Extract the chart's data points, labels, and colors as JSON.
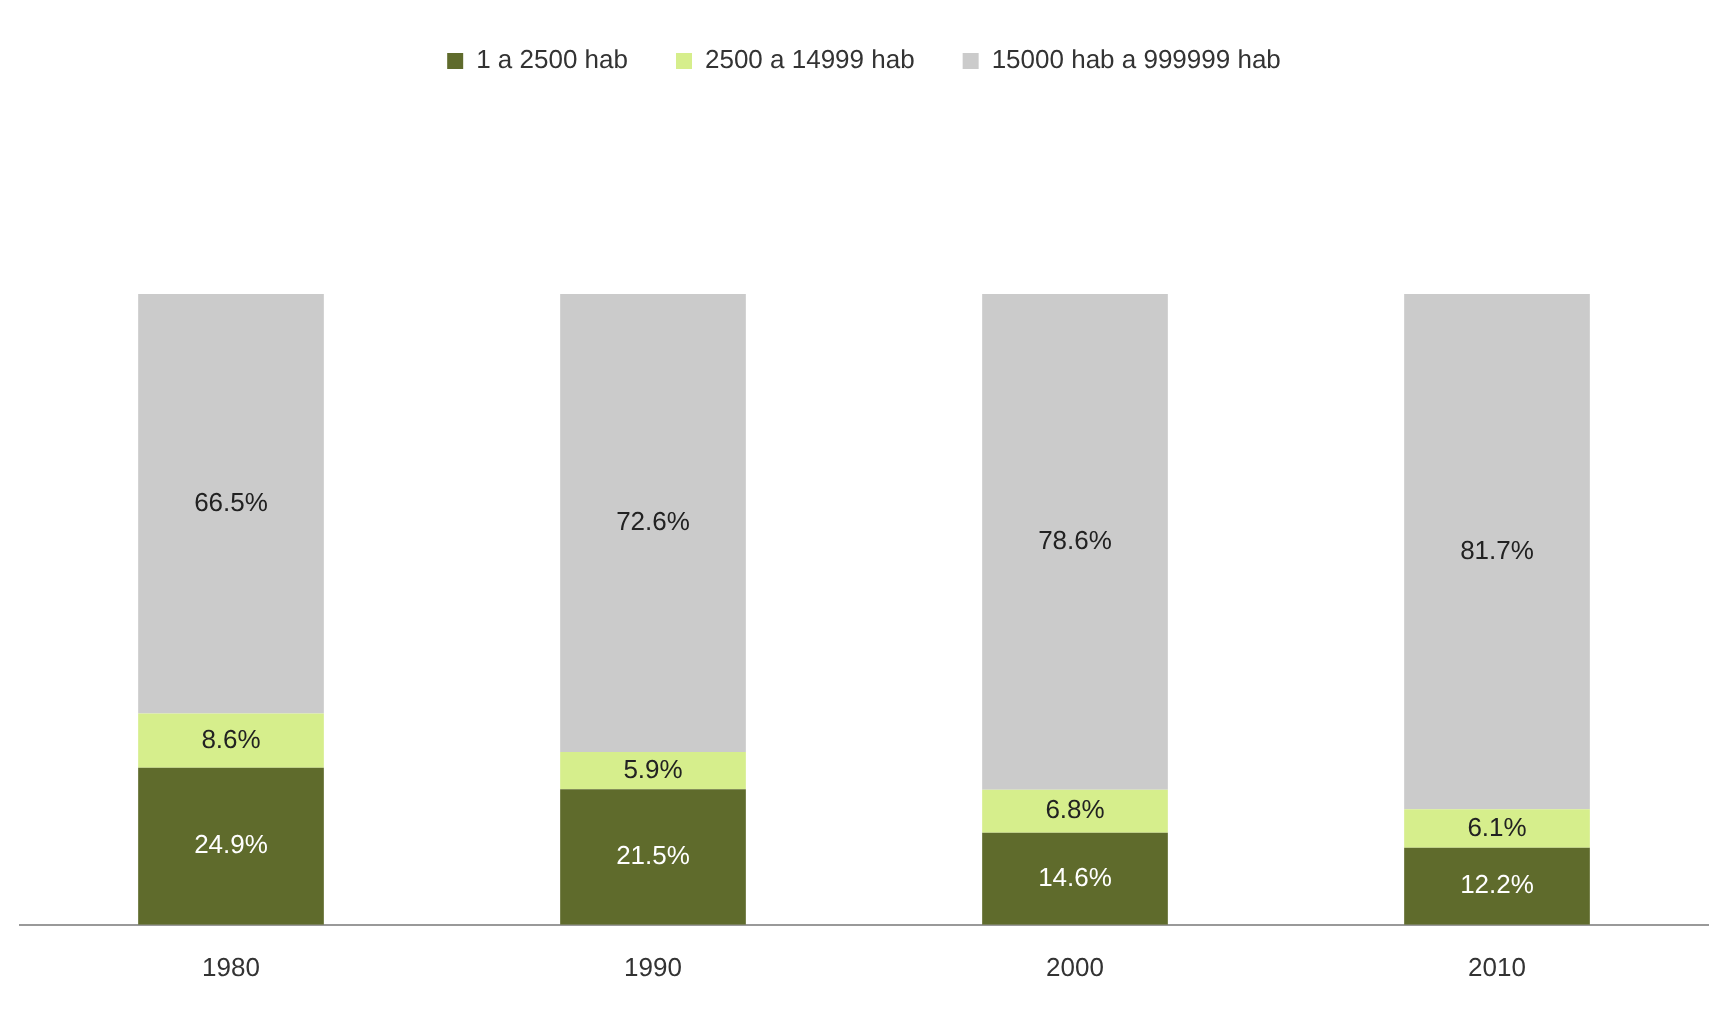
{
  "chart_data": {
    "type": "bar",
    "stacked": true,
    "legend": "top",
    "grid": false,
    "tick_labels": "x",
    "categories": [
      "1980",
      "1990",
      "2000",
      "2010"
    ],
    "series": [
      {
        "name": "1 a 2500 hab",
        "color": "#5f6b2c",
        "values": [
          24.9,
          21.5,
          14.6,
          12.2
        ],
        "value_labels": [
          "24.9%",
          "21.5%",
          "14.6%",
          "12.2%"
        ]
      },
      {
        "name": "2500 a 14999 hab",
        "color": "#d6ee8c",
        "values": [
          8.6,
          5.9,
          6.8,
          6.1
        ],
        "value_labels": [
          "8.6%",
          "5.9%",
          "6.8%",
          "6.1%"
        ]
      },
      {
        "name": "15000 hab a 999999 hab",
        "color": "#cbcbcb",
        "values": [
          66.5,
          72.6,
          78.6,
          81.7
        ],
        "value_labels": [
          "66.5%",
          "72.6%",
          "78.6%",
          "81.7%"
        ]
      }
    ]
  }
}
